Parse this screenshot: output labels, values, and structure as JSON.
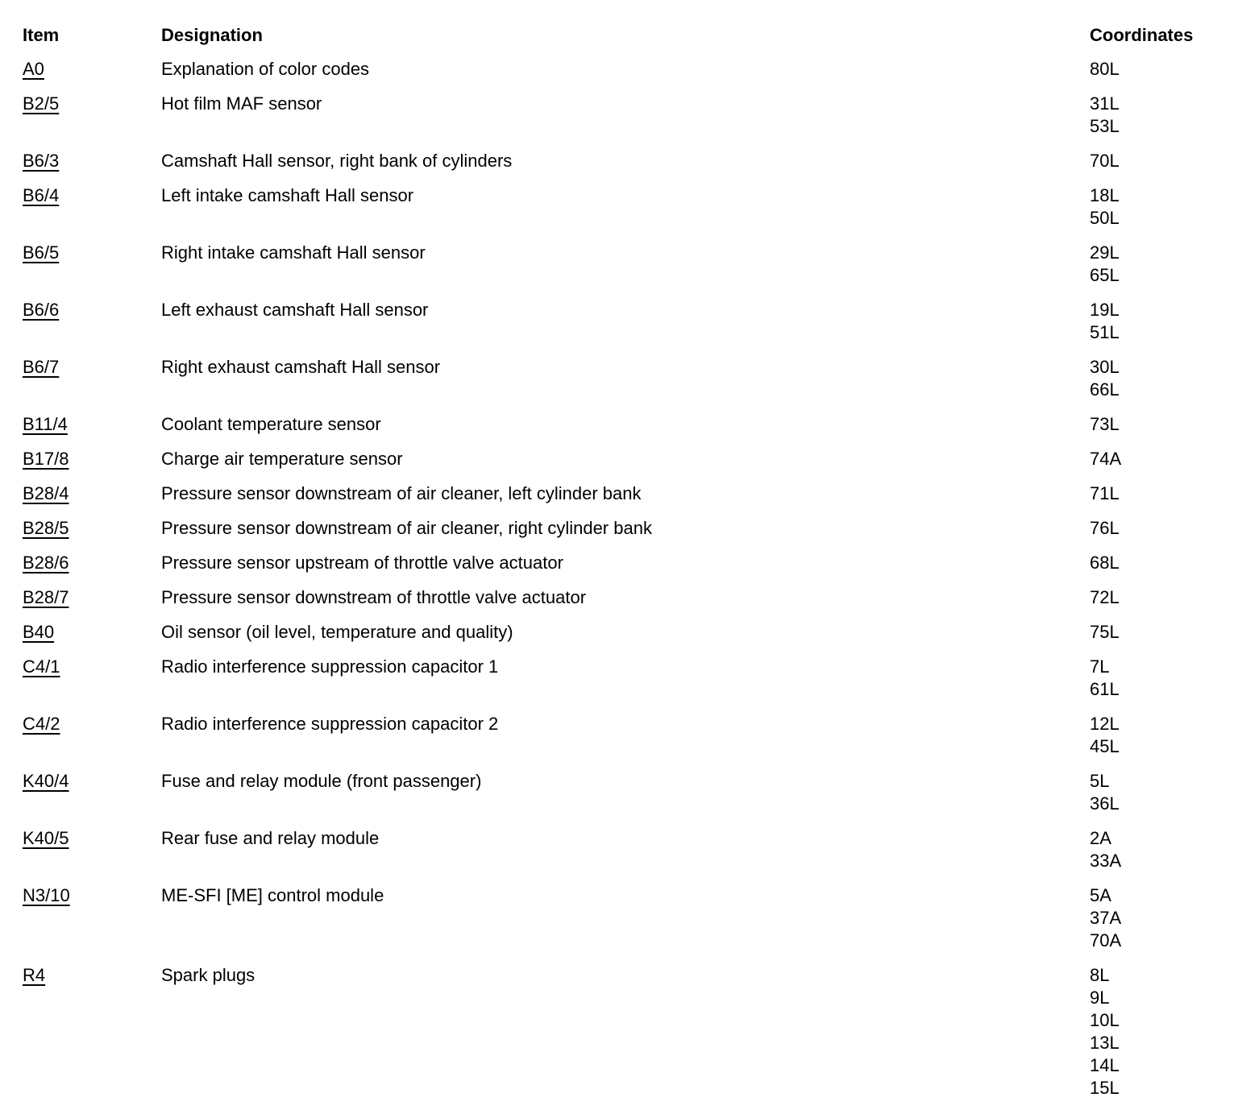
{
  "header": {
    "item": "Item",
    "designation": "Designation",
    "coordinates": "Coordinates"
  },
  "rows": [
    {
      "item": "A0",
      "designation": "Explanation of color codes",
      "coordinates": [
        "80L"
      ]
    },
    {
      "item": "B2/5",
      "designation": "Hot film MAF sensor",
      "coordinates": [
        "31L",
        "53L"
      ]
    },
    {
      "item": "B6/3",
      "designation": "Camshaft Hall sensor, right bank of cylinders",
      "coordinates": [
        "70L"
      ]
    },
    {
      "item": "B6/4",
      "designation": "Left intake camshaft Hall sensor",
      "coordinates": [
        "18L",
        "50L"
      ]
    },
    {
      "item": "B6/5",
      "designation": "Right intake camshaft Hall sensor",
      "coordinates": [
        "29L",
        "65L"
      ]
    },
    {
      "item": "B6/6",
      "designation": "Left exhaust camshaft Hall sensor",
      "coordinates": [
        "19L",
        "51L"
      ]
    },
    {
      "item": "B6/7",
      "designation": "Right exhaust camshaft Hall sensor",
      "coordinates": [
        "30L",
        "66L"
      ]
    },
    {
      "item": "B11/4",
      "designation": "Coolant temperature sensor",
      "coordinates": [
        "73L"
      ]
    },
    {
      "item": "B17/8",
      "designation": "Charge air temperature sensor",
      "coordinates": [
        "74A"
      ]
    },
    {
      "item": "B28/4",
      "designation": "Pressure sensor downstream of air cleaner, left cylinder bank",
      "coordinates": [
        "71L"
      ]
    },
    {
      "item": "B28/5",
      "designation": "Pressure sensor downstream of air cleaner, right cylinder bank",
      "coordinates": [
        "76L"
      ]
    },
    {
      "item": "B28/6",
      "designation": "Pressure sensor upstream of throttle valve actuator",
      "coordinates": [
        "68L"
      ]
    },
    {
      "item": "B28/7",
      "designation": "Pressure sensor downstream of throttle valve actuator",
      "coordinates": [
        "72L"
      ]
    },
    {
      "item": "B40",
      "designation": "Oil sensor (oil level, temperature and quality)",
      "coordinates": [
        "75L"
      ]
    },
    {
      "item": "C4/1",
      "designation": "Radio interference suppression capacitor 1",
      "coordinates": [
        "7L",
        "61L"
      ]
    },
    {
      "item": "C4/2",
      "designation": "Radio interference suppression capacitor 2",
      "coordinates": [
        "12L",
        "45L"
      ]
    },
    {
      "item": "K40/4",
      "designation": "Fuse and relay module (front passenger)",
      "coordinates": [
        "5L",
        "36L"
      ]
    },
    {
      "item": "K40/5",
      "designation": "Rear fuse and relay module",
      "coordinates": [
        "2A",
        "33A"
      ]
    },
    {
      "item": "N3/10",
      "designation": "ME-SFI [ME] control module",
      "coordinates": [
        "5A",
        "37A",
        "70A"
      ]
    },
    {
      "item": "R4",
      "designation": "Spark plugs",
      "coordinates": [
        "8L",
        "9L",
        "10L",
        "13L",
        "14L",
        "15L"
      ]
    }
  ]
}
